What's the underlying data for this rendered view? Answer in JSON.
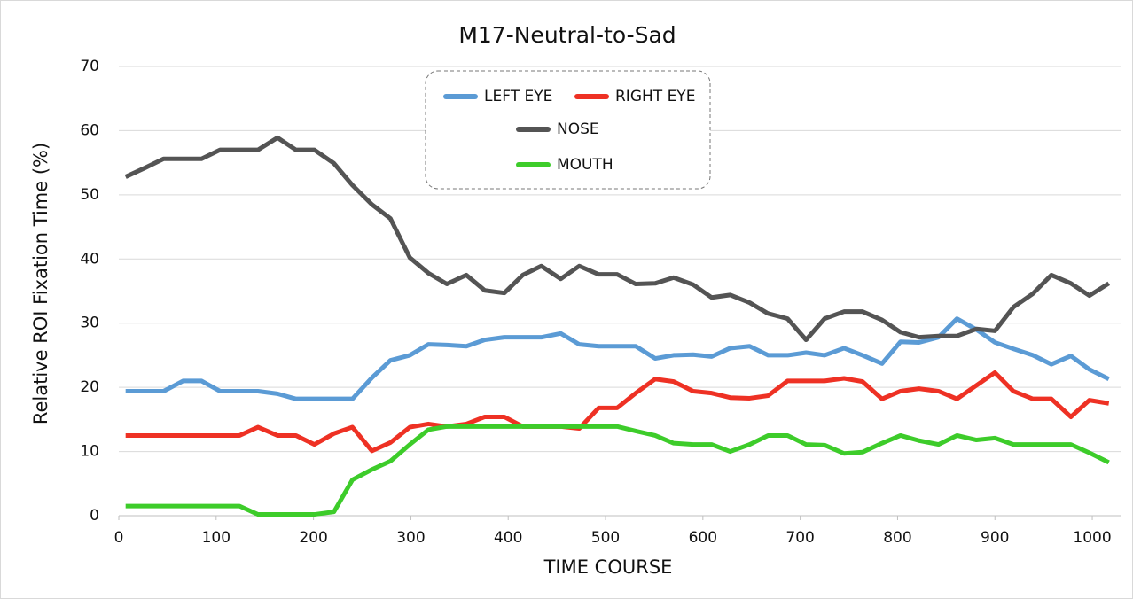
{
  "chart_data": {
    "type": "line",
    "title": "M17-Neutral-to-Sad",
    "x_label": "TIME  COURSE",
    "y_label": "Relative  ROI  Fixation  Time  (%)",
    "x": [
      7,
      27,
      46,
      66,
      85,
      104,
      124,
      143,
      163,
      182,
      201,
      221,
      240,
      260,
      279,
      299,
      318,
      337,
      357,
      376,
      396,
      415,
      434,
      454,
      473,
      493,
      512,
      531,
      551,
      570,
      590,
      609,
      628,
      648,
      667,
      687,
      706,
      725,
      745,
      764,
      784,
      803,
      822,
      842,
      861,
      881,
      900,
      919,
      939,
      958,
      978,
      997,
      1017
    ],
    "series": [
      {
        "name": "LEFT EYE",
        "color": "#5b9bd5",
        "values": [
          19.4,
          19.4,
          19.4,
          21,
          21,
          19.4,
          19.4,
          19.4,
          19,
          18.2,
          18.2,
          18.2,
          18.2,
          21.5,
          24.2,
          25,
          26.7,
          26.6,
          26.4,
          27.4,
          27.8,
          27.8,
          27.8,
          28.4,
          26.7,
          26.4,
          26.4,
          26.4,
          24.5,
          25,
          25.1,
          24.8,
          26.1,
          26.4,
          25,
          25,
          25.4,
          25,
          26.1,
          25,
          23.7,
          27.1,
          27,
          27.8,
          30.7,
          29,
          27,
          26,
          25,
          23.6,
          24.9,
          22.8,
          21.3
        ]
      },
      {
        "name": "RIGHT EYE",
        "color": "#ee3124",
        "values": [
          12.5,
          12.5,
          12.5,
          12.5,
          12.5,
          12.5,
          12.5,
          13.8,
          12.5,
          12.5,
          11.1,
          12.8,
          13.8,
          10.1,
          11.4,
          13.8,
          14.3,
          13.9,
          14.3,
          15.4,
          15.4,
          13.9,
          13.9,
          13.9,
          13.6,
          16.8,
          16.8,
          19.1,
          21.3,
          20.9,
          19.4,
          19.1,
          18.4,
          18.3,
          18.7,
          21,
          21,
          21,
          21.4,
          20.9,
          18.2,
          19.4,
          19.8,
          19.4,
          18.2,
          20.3,
          22.3,
          19.4,
          18.2,
          18.2,
          15.4,
          18,
          17.5
        ]
      },
      {
        "name": "NOSE",
        "color": "#545454",
        "values": [
          52.8,
          54.2,
          55.6,
          55.6,
          55.6,
          57,
          57,
          57,
          58.9,
          57,
          57,
          54.9,
          51.5,
          48.5,
          46.3,
          40.2,
          37.8,
          36.1,
          37.5,
          35.1,
          34.7,
          37.5,
          38.9,
          36.9,
          38.9,
          37.6,
          37.6,
          36.1,
          36.2,
          37.1,
          36,
          34,
          34.4,
          33.2,
          31.5,
          30.7,
          27.4,
          30.7,
          31.8,
          31.8,
          30.5,
          28.6,
          27.8,
          28,
          28,
          29.1,
          28.8,
          32.5,
          34.6,
          37.5,
          36.2,
          34.3,
          36.2
        ]
      },
      {
        "name": "MOUTH",
        "color": "#3dcc2a",
        "values": [
          1.5,
          1.5,
          1.5,
          1.5,
          1.5,
          1.5,
          1.5,
          0.2,
          0.2,
          0.2,
          0.2,
          0.6,
          5.6,
          7.2,
          8.5,
          11.1,
          13.4,
          13.9,
          13.9,
          13.9,
          13.9,
          13.9,
          13.9,
          13.9,
          13.9,
          13.9,
          13.9,
          13.2,
          12.5,
          11.3,
          11.1,
          11.1,
          10,
          11.1,
          12.5,
          12.5,
          11.1,
          11,
          9.7,
          9.9,
          11.3,
          12.5,
          11.7,
          11.1,
          12.5,
          11.8,
          12.1,
          11.1,
          11.1,
          11.1,
          11.1,
          9.8,
          8.3
        ]
      }
    ],
    "xlim": [
      0,
      1030
    ],
    "xticks": [
      0,
      100,
      200,
      300,
      400,
      500,
      600,
      700,
      800,
      900,
      1000
    ],
    "ylim": [
      0,
      70
    ],
    "yticks": [
      0,
      10,
      20,
      30,
      40,
      50,
      60,
      70
    ],
    "grid": true
  }
}
